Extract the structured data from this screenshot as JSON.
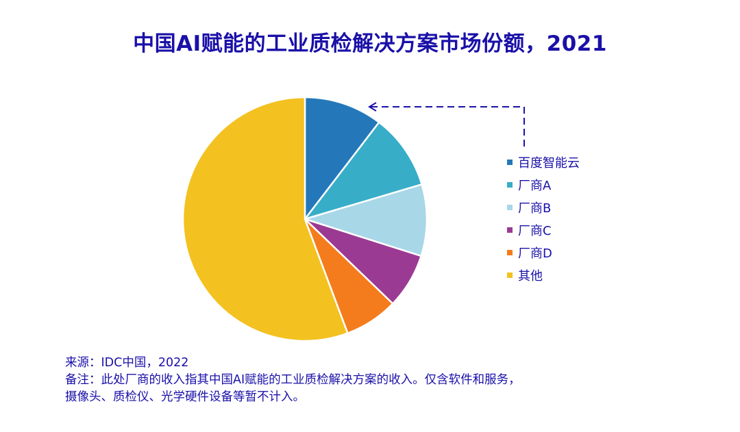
{
  "title": "中国AI赋能的工业质检解决方案市场份额，2021",
  "colors": {
    "title": "#1a10a8",
    "text": "#1a10a8",
    "arrow": "#1a10a8"
  },
  "chart_data": {
    "type": "pie",
    "title": "中国AI赋能的工业质检解决方案市场份额，2021",
    "start_angle_deg": 0,
    "direction": "clockwise",
    "categories": [
      "百度智能云",
      "厂商A",
      "厂商B",
      "厂商C",
      "厂商D",
      "其他"
    ],
    "values": [
      10.4,
      10.0,
      9.5,
      7.3,
      7.1,
      55.7
    ],
    "unit": "%",
    "colors": [
      "#2478b9",
      "#38adc8",
      "#a8d7e8",
      "#9b3a93",
      "#f47c1c",
      "#f3c120"
    ],
    "legend_position": "right",
    "annotation": {
      "type": "dashed-arrow",
      "from_legend_item": "百度智能云",
      "to_slice": "百度智能云"
    }
  },
  "legend": {
    "items": [
      {
        "label": "百度智能云",
        "color": "#2478b9"
      },
      {
        "label": "厂商A",
        "color": "#38adc8"
      },
      {
        "label": "厂商B",
        "color": "#a8d7e8"
      },
      {
        "label": "厂商C",
        "color": "#9b3a93"
      },
      {
        "label": "厂商D",
        "color": "#f47c1c"
      },
      {
        "label": "其他",
        "color": "#f3c120"
      }
    ]
  },
  "footnote": {
    "source": "来源：IDC中国，2022",
    "note_line1": "备注：此处厂商的收入指其中国AI赋能的工业质检解决方案的收入。仅含软件和服务，",
    "note_line2": "摄像头、质检仪、光学硬件设备等暂不计入。"
  }
}
